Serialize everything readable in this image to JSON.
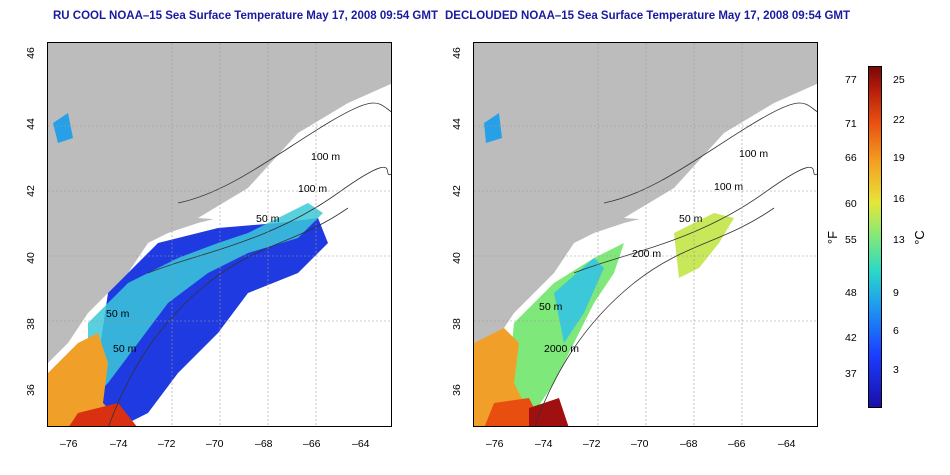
{
  "panels": [
    {
      "title": "RU COOL NOAA–15 Sea Surface Temperature May 17, 2008 09:54 GMT",
      "contours": [
        "100 m",
        "100 m",
        "50 m",
        "50 m",
        "50 m"
      ]
    },
    {
      "title": "DECLOUDED NOAA–15 Sea Surface Temperature May 17, 2008 09:54 GMT",
      "contours": [
        "100 m",
        "100 m",
        "50 m",
        "200 m",
        "50 m",
        "2000 m"
      ]
    }
  ],
  "x_ticks": [
    "–76",
    "–74",
    "–72",
    "–70",
    "–68",
    "–66",
    "–64"
  ],
  "y_ticks": [
    "36",
    "38",
    "40",
    "42",
    "44",
    "46"
  ],
  "colorbar": {
    "fahrenheit": [
      "77",
      "71",
      "66",
      "60",
      "55",
      "48",
      "42",
      "37"
    ],
    "celsius": [
      "25",
      "22",
      "19",
      "16",
      "13",
      "9",
      "6",
      "3"
    ],
    "unit_f": "°F",
    "unit_c": "°C"
  },
  "colors": {
    "land": "#bcbcbc",
    "title": "#1a1aa0"
  }
}
